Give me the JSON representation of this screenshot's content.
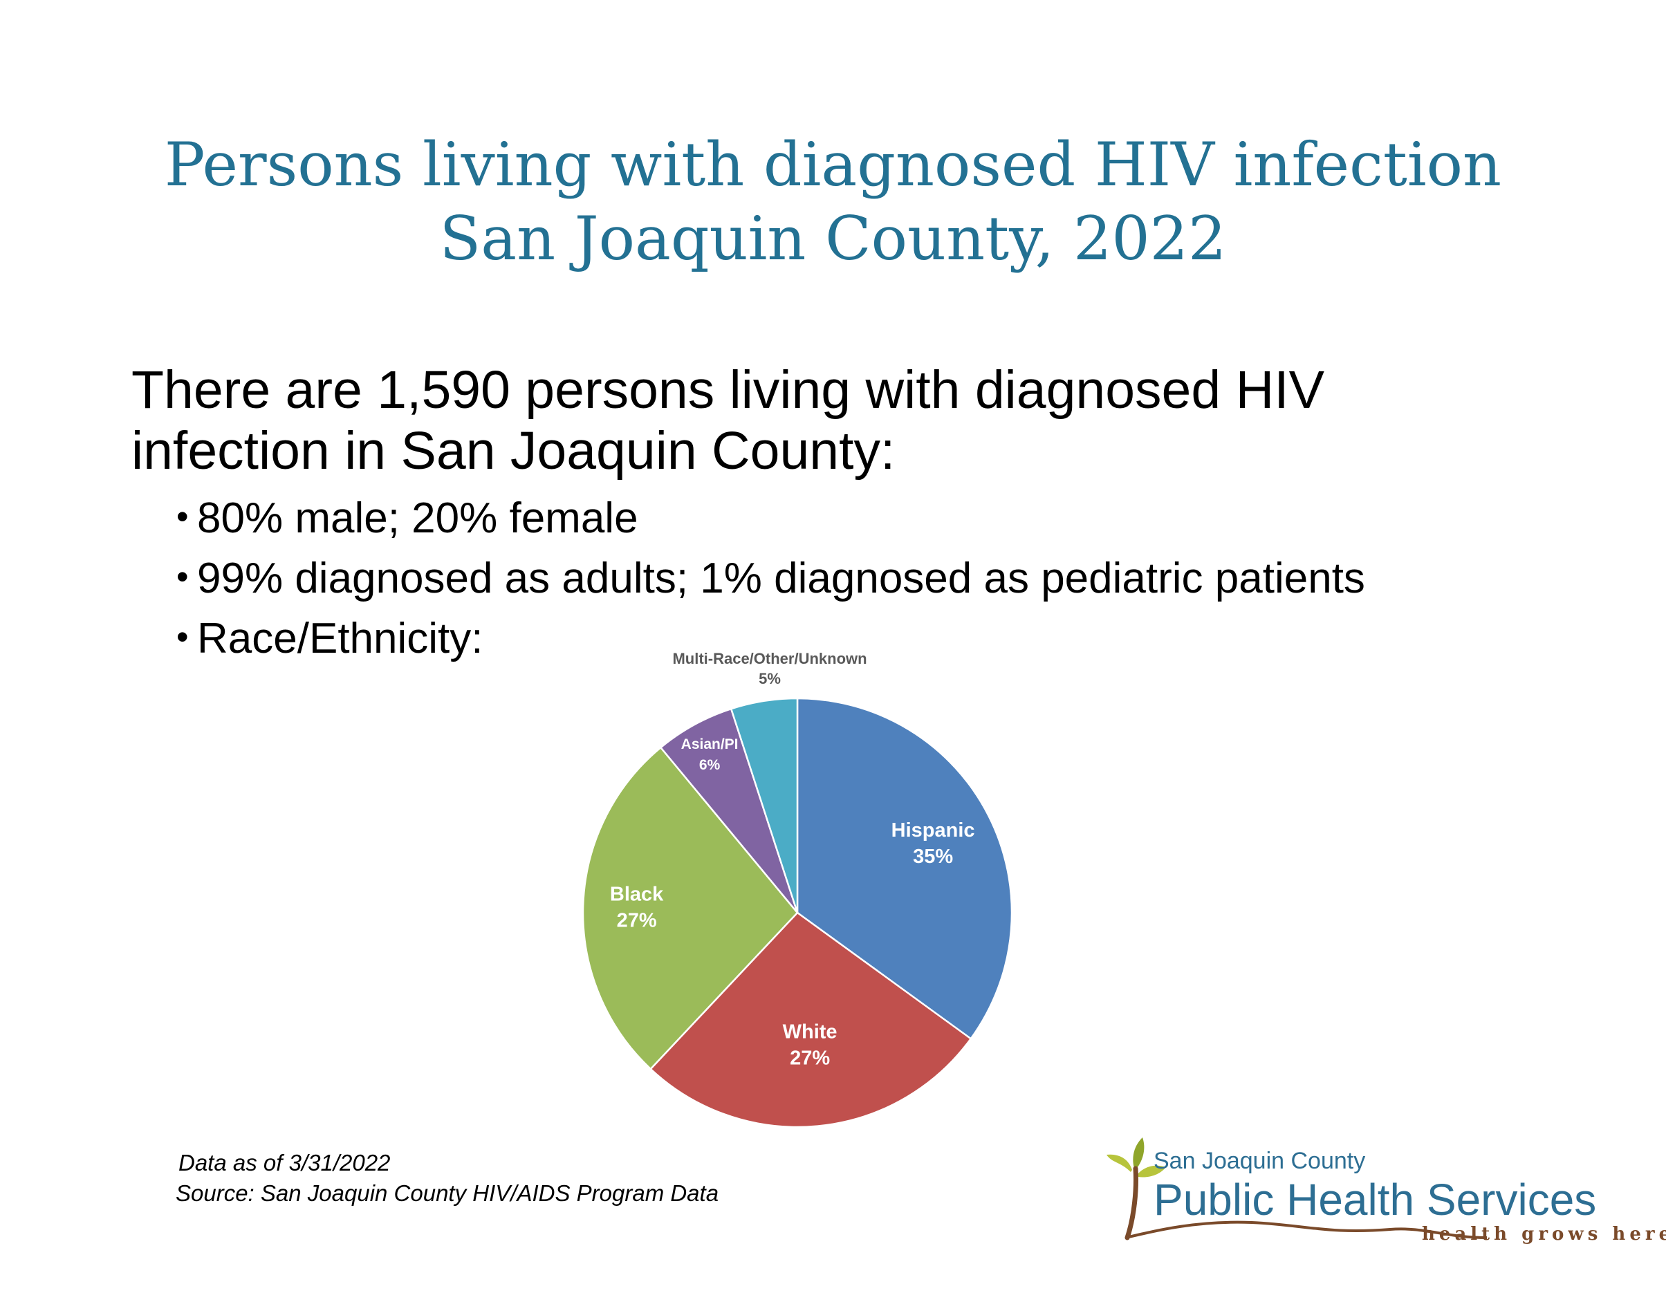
{
  "title": {
    "line1": "Persons living with diagnosed HIV infection",
    "line2": "San Joaquin County, 2022"
  },
  "intro": {
    "line1": "There are 1,590 persons living with diagnosed HIV",
    "line2": "infection in San Joaquin County:"
  },
  "bullets": [
    "80% male; 20% female",
    "99% diagnosed as adults; 1% diagnosed as pediatric patients",
    "Race/Ethnicity:"
  ],
  "chart_data": {
    "type": "pie",
    "title": "",
    "start_angle_deg": 0,
    "direction": "clockwise",
    "slices": [
      {
        "label": "Hispanic",
        "value": 35,
        "value_label": "35%",
        "color": "#4f81bd"
      },
      {
        "label": "White",
        "value": 27,
        "value_label": "27%",
        "color": "#c0504d"
      },
      {
        "label": "Black",
        "value": 27,
        "value_label": "27%",
        "color": "#9bbb59"
      },
      {
        "label": "Asian/PI",
        "value": 6,
        "value_label": "6%",
        "color": "#8064a2"
      },
      {
        "label": "Multi-Race/Other/Unknown",
        "value": 5,
        "value_label": "5%",
        "color": "#4bacc6"
      }
    ],
    "legend": "none",
    "label_color": "#ffffff",
    "outside_label_color": "#595959"
  },
  "footnote": {
    "data_as_of": "Data as of 3/31/2022",
    "source": "Source:  San Joaquin County HIV/AIDS Program Data"
  },
  "logo": {
    "small_text": "San Joaquin County",
    "main_text": "Public Health Services",
    "tagline": "health grows here",
    "colors": {
      "text": "#2d6e93",
      "leaf": "#b7c43c",
      "branch": "#7a4a2a"
    }
  },
  "colors": {
    "title": "#237193",
    "body_text": "#000000"
  }
}
